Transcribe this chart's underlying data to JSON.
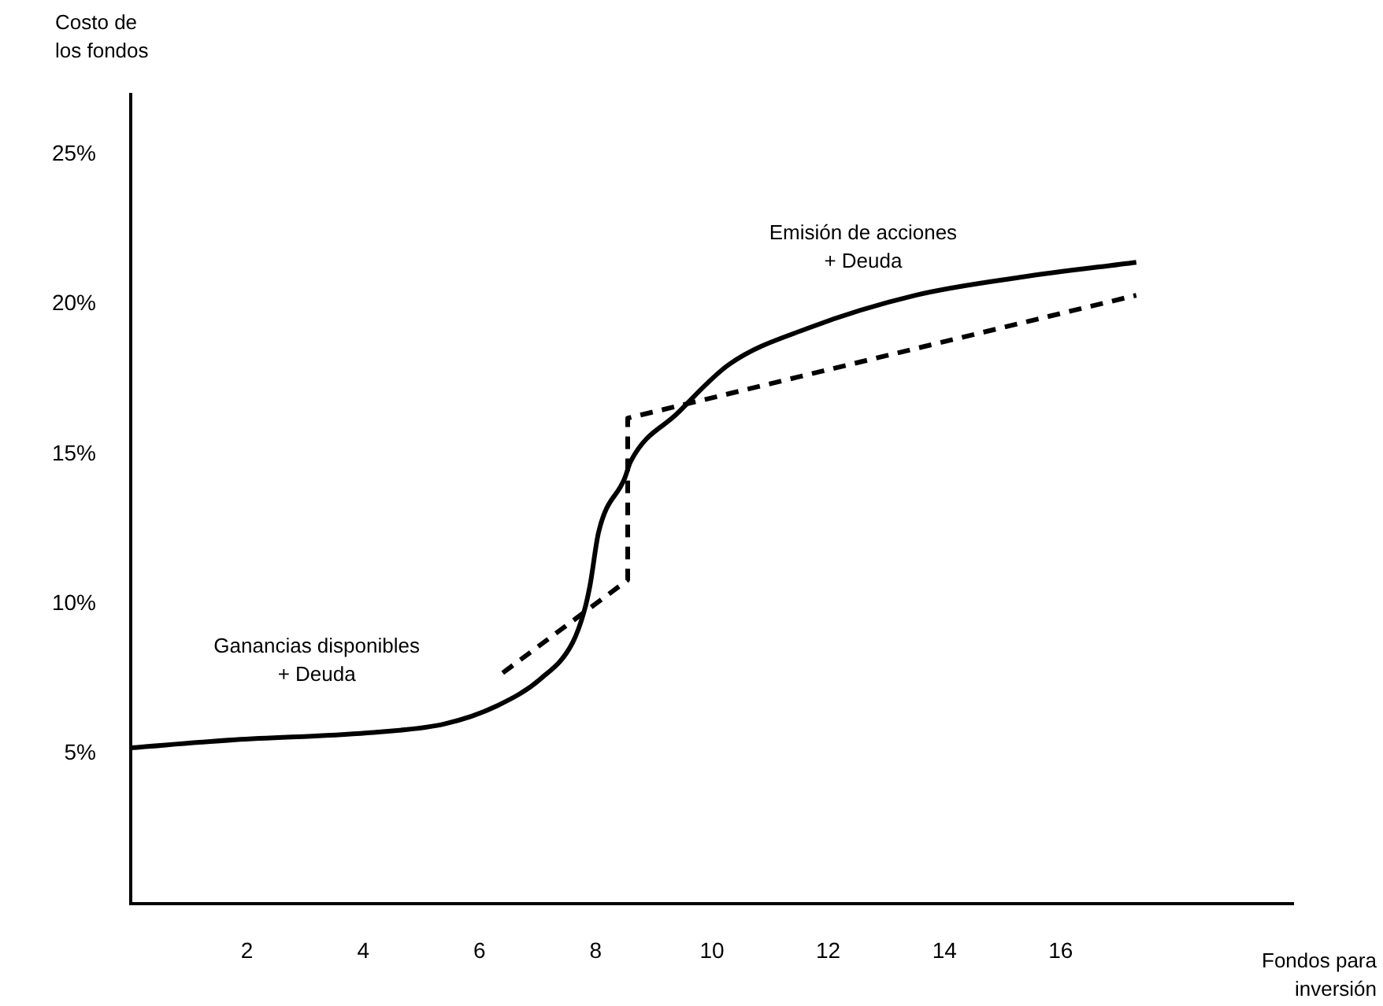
{
  "chart_data": {
    "type": "line",
    "ylabel": "Costo de\nlos fondos",
    "xlabel": "Fondos para\ninversión",
    "xlim": [
      0,
      20
    ],
    "xticks": [
      2,
      4,
      6,
      8,
      10,
      12,
      14,
      16
    ],
    "ylim": [
      0,
      27
    ],
    "yticks": [
      {
        "value": 5,
        "label": "5%"
      },
      {
        "value": 10,
        "label": "10%"
      },
      {
        "value": 15,
        "label": "15%"
      },
      {
        "value": 20,
        "label": "20%"
      },
      {
        "value": 25,
        "label": "25%"
      }
    ],
    "grid": false,
    "legend": false,
    "marker": "none",
    "series": [
      {
        "color": "#000000",
        "line_style": "solid",
        "x": [
          0,
          1.8,
          4.07,
          5.4,
          6.3,
          7.05,
          7.6,
          7.8,
          7.9,
          8.05,
          8.5,
          8.6,
          9.4,
          10.3,
          11.65,
          13.5,
          15.3,
          17.3
        ],
        "values": [
          5.2,
          5.47,
          5.7,
          6.0,
          6.6,
          7.5,
          8.7,
          9.75,
          10.6,
          12.4,
          14.2,
          14.75,
          16.35,
          18.0,
          19.2,
          20.3,
          20.9,
          21.4
        ]
      },
      {
        "color": "#000000",
        "line_style": "dashed",
        "x": [
          6.4,
          8.55,
          8.55,
          17.3
        ],
        "values": [
          7.7,
          10.8,
          16.2,
          20.3
        ]
      }
    ],
    "annotations": [
      "Ganancias disponibles\n+ Deuda",
      "Emisión de acciones\n+ Deuda"
    ]
  }
}
